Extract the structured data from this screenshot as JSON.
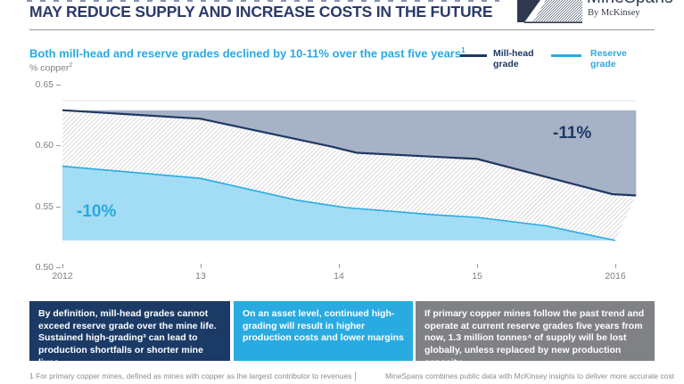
{
  "header": {
    "title": "MAY REDUCE SUPPLY AND INCREASE COSTS IN THE FUTURE",
    "logo": {
      "name": "MineSpans",
      "byline": "By McKinsey"
    }
  },
  "chart": {
    "subtitle": "Both mill-head and reserve grades declined by 10-11% over the past five years",
    "subtitle_sup": "1",
    "unit": "% copper",
    "unit_sup": "2",
    "legend": [
      {
        "label_line1": "Mill-head",
        "label_line2": "grade",
        "color": "#1F3864"
      },
      {
        "label_line1": "Reserve",
        "label_line2": "grade",
        "color": "#29ABE2"
      }
    ],
    "y_ticks": [
      "0.65",
      "0.60",
      "0.55",
      "0.50"
    ],
    "x_ticks": [
      "2012",
      "13",
      "14",
      "15",
      "2016"
    ],
    "mill_decline_label": "-11%",
    "reserve_decline_label": "-10%"
  },
  "chart_data": {
    "type": "area",
    "title": "Both mill-head and reserve grades declined by 10-11% over the past five years",
    "ylabel": "% copper",
    "xlim": [
      2012,
      2016.15
    ],
    "ylim": [
      0.5,
      0.65
    ],
    "x_ticks": [
      2012,
      2013,
      2014,
      2015,
      2016
    ],
    "grid": false,
    "legend_position": "top-right",
    "series": [
      {
        "name": "Mill-head grade",
        "line_color": "#1F3864",
        "decline_label": "-11%",
        "points": [
          [
            2012.0,
            0.629
          ],
          [
            2013.0,
            0.622
          ],
          [
            2013.95,
            0.599
          ],
          [
            2014.13,
            0.594
          ],
          [
            2015.0,
            0.589
          ],
          [
            2015.98,
            0.56
          ],
          [
            2016.15,
            0.559
          ]
        ]
      },
      {
        "name": "Reserve grade",
        "line_color": "#29ABE2",
        "decline_label": "-10%",
        "points": [
          [
            2012.0,
            0.583
          ],
          [
            2013.0,
            0.573
          ],
          [
            2013.7,
            0.555
          ],
          [
            2014.05,
            0.549
          ],
          [
            2014.7,
            0.543
          ],
          [
            2015.0,
            0.541
          ],
          [
            2015.5,
            0.534
          ],
          [
            2016.0,
            0.522
          ]
        ]
      }
    ],
    "area_styles": {
      "mill_decline_fill": "#A6B2C5",
      "between_fill": "hatch",
      "reserve_fill": "#A3DCF5",
      "hatch_line_color": "#DADADA"
    }
  },
  "callouts": [
    {
      "text": "By definition, mill-head grades cannot exceed reserve grade over the mine life. Sustained high-grading³ can lead to production shortfalls or shorter mine lives",
      "bg": "#1B3A66"
    },
    {
      "text": "On an asset level, continued high-grading will result in higher production costs and lower margins",
      "bg": "#29ABE2"
    },
    {
      "text": "If primary copper mines follow the past trend and operate at current reserve grades five years from now, 1.3 million tonnes⁴ of supply will be lost globally, unless replaced by new production capacity",
      "bg": "#7F8184"
    }
  ],
  "footnotes": {
    "left": "1 For primary copper mines, defined as mines with copper as the largest contributor to revenues",
    "right": "MineSpans combines public data with McKinsey insights to deliver more accurate cost"
  }
}
